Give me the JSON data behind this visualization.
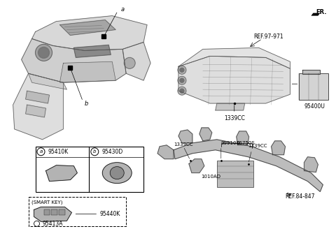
{
  "bg_color": "#ffffff",
  "fr_label": "FR.",
  "layout": {
    "fig_w": 4.8,
    "fig_h": 3.28,
    "dpi": 100
  },
  "dashboard": {
    "label_a": "a",
    "label_b": "b",
    "part_a": "95410K",
    "part_b": "95430D"
  },
  "hvac": {
    "ref": "REF.97-971",
    "part": "1339CC",
    "subpart": "95400U"
  },
  "harness": {
    "ref": "REF.84-847",
    "labels": [
      "1339CC",
      "99910C",
      "86750S",
      "1010AD",
      "1339CC"
    ]
  },
  "smart_key": {
    "title": "(SMART KEY)",
    "part1": "95440K",
    "part2": "95413A"
  }
}
